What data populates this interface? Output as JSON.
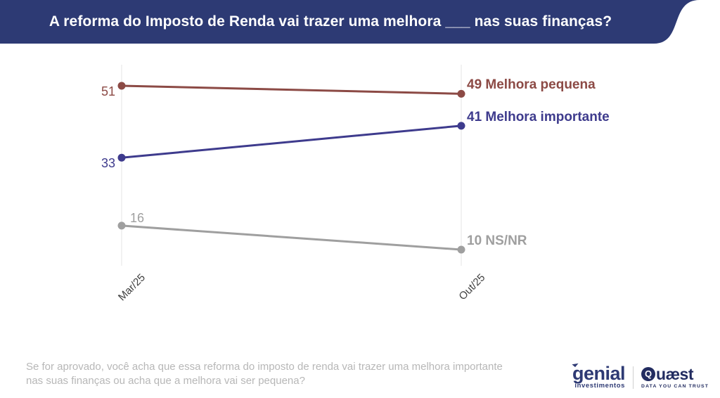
{
  "header": {
    "title": "A reforma do Imposto de Renda vai trazer uma melhora ___ nas suas finanças?",
    "background_color": "#2d3a74",
    "text_color": "#ffffff"
  },
  "chart_data": {
    "type": "line",
    "x": [
      "Mar/25",
      "Out/25"
    ],
    "series": [
      {
        "name": "Melhora pequena",
        "values": [
          51,
          49
        ],
        "color": "#8c4a45",
        "start_label_position": "left"
      },
      {
        "name": "Melhora importante",
        "values": [
          33,
          41
        ],
        "color": "#3e3b8d",
        "start_label_position": "left"
      },
      {
        "name": "NS/NR",
        "values": [
          16,
          10
        ],
        "color": "#9f9f9f",
        "start_label_position": "above"
      }
    ],
    "ylim": [
      0,
      60
    ],
    "grid": "vertical-gridlines-only",
    "gridline_color": "#e8e8e8",
    "tick_label_color": "#3f3f3f",
    "legend_position": "end-of-line-labels"
  },
  "footer": {
    "question_line1": "Se for aprovado, você acha que essa reforma do imposto de renda vai trazer uma melhora importante",
    "question_line2": "nas suas finanças ou acha que a melhora vai ser pequena?",
    "text_color": "#b7b7b7"
  },
  "branding": {
    "genial": {
      "wordmark": "genial",
      "subtitle": "investimentos",
      "color": "#2e3a74"
    },
    "quaest": {
      "wordmark_first_letter": "Q",
      "wordmark_rest": "uæst",
      "tagline": "DATA YOU CAN TRUST",
      "color": "#222c60"
    }
  }
}
